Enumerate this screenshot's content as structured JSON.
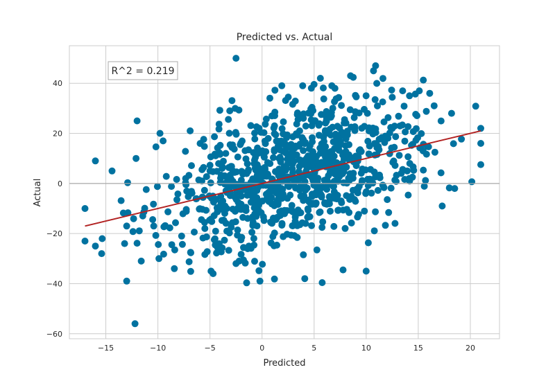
{
  "chart_data": {
    "type": "scatter",
    "title": "Predicted vs. Actual",
    "xlabel": "Predicted",
    "ylabel": "Actual",
    "xlim": [
      -18.5,
      22.8
    ],
    "ylim": [
      -62,
      55
    ],
    "xticks": [
      -15,
      -10,
      -5,
      0,
      5,
      10,
      15,
      20
    ],
    "yticks": [
      -60,
      -40,
      -20,
      0,
      20,
      40
    ],
    "grid": true,
    "annotation": "R^2 = 0.219",
    "fit_line": {
      "x": [
        -17,
        21
      ],
      "y": [
        -17,
        21
      ],
      "color": "#b22222"
    },
    "zero_line_y": 0,
    "point_color": "#0072a0",
    "points_count": 1000,
    "seed": 219,
    "points": [
      [
        -2.5,
        50
      ],
      [
        -12.2,
        -56
      ],
      [
        -13,
        -39
      ],
      [
        -0.2,
        -39
      ],
      [
        10.9,
        47
      ],
      [
        10.7,
        45
      ],
      [
        8.5,
        43
      ],
      [
        5.6,
        42
      ],
      [
        -12,
        25
      ],
      [
        -16,
        9
      ],
      [
        21,
        22
      ],
      [
        21,
        16
      ],
      [
        -17,
        -10
      ],
      [
        -17,
        -23
      ],
      [
        18.2,
        28
      ],
      [
        18.5,
        -2
      ],
      [
        17.3,
        -9
      ],
      [
        -4.7,
        -36
      ],
      [
        -4.9,
        -35
      ],
      [
        10,
        -35
      ],
      [
        4.1,
        -38
      ],
      [
        -2.5,
        -32
      ],
      [
        -2.2,
        -31
      ],
      [
        -9.9,
        -30
      ],
      [
        -11.6,
        -31
      ],
      [
        -3.1,
        29
      ],
      [
        -6.9,
        21
      ],
      [
        -9.8,
        20
      ],
      [
        -9.5,
        17
      ],
      [
        -12.1,
        10
      ],
      [
        -14.4,
        5
      ],
      [
        -15.4,
        -28
      ],
      [
        -16,
        -25
      ],
      [
        -13.2,
        -24
      ],
      [
        -13,
        -17
      ],
      [
        1.9,
        39
      ],
      [
        3.9,
        39
      ],
      [
        6.7,
        39
      ],
      [
        7,
        38
      ],
      [
        13.5,
        37
      ],
      [
        15.1,
        37
      ],
      [
        16.1,
        36
      ]
    ]
  }
}
